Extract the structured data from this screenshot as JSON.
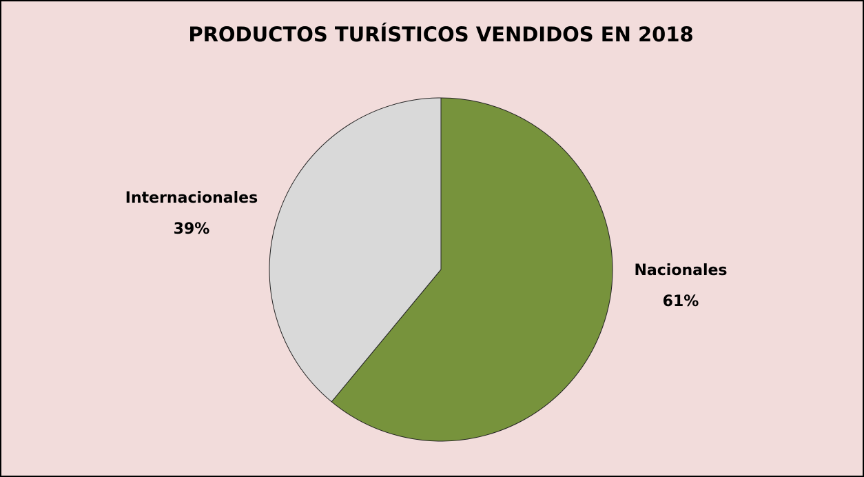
{
  "chart_data": {
    "type": "pie",
    "title": "PRODUCTOS TURÍSTICOS VENDIDOS EN 2018",
    "categories": [
      "Nacionales",
      "Internacionales"
    ],
    "values": [
      61,
      39
    ],
    "value_labels": [
      "61%",
      "39%"
    ],
    "colors": [
      "#77933c",
      "#d9d9d9"
    ]
  }
}
